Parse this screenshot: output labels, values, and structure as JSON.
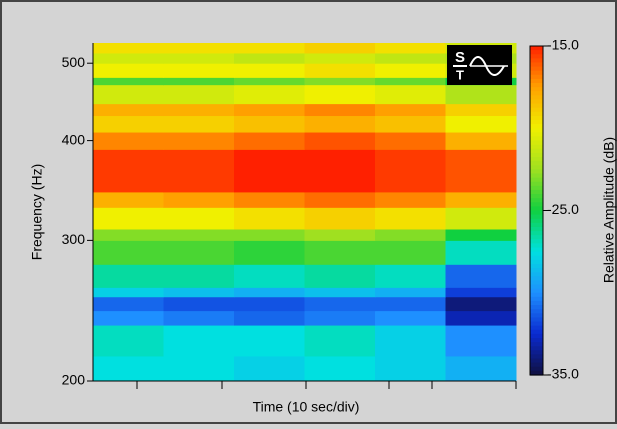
{
  "chart_data": {
    "type": "heatmap",
    "ylabel": "Frequency (Hz)",
    "xlabel": "Time (10 sec/div)",
    "colorbar_label": "Relative Amplitude (dB)",
    "log_y": true,
    "ylim": [
      200,
      530
    ],
    "yticks": [
      200,
      300,
      400,
      500
    ],
    "bins": [
      200,
      215,
      235,
      245,
      255,
      262,
      280,
      300,
      310,
      330,
      345,
      390,
      410,
      430,
      445,
      470,
      480,
      500,
      515,
      530
    ],
    "values": [
      [
        -27.5,
        -27.5,
        -28,
        -27.5,
        -28,
        -29
      ],
      [
        -27,
        -27.5,
        -27.5,
        -27,
        -28,
        -30
      ],
      [
        -30,
        -30.5,
        -31,
        -30.5,
        -30,
        -33
      ],
      [
        -31,
        -31.5,
        -31.5,
        -31,
        -31,
        -34
      ],
      [
        -28,
        -28.5,
        -29,
        -28.5,
        -29,
        -32
      ],
      [
        -26.5,
        -26.5,
        -27,
        -26.5,
        -27,
        -31
      ],
      [
        -24,
        -24,
        -24.5,
        -24,
        -24,
        -27
      ],
      [
        -23,
        -23,
        -23,
        -22.5,
        -23,
        -25
      ],
      [
        -20,
        -20,
        -19.5,
        -19,
        -19.5,
        -21
      ],
      [
        -18,
        -17.5,
        -17,
        -16.5,
        -17,
        -18
      ],
      [
        -15.5,
        -15.5,
        -15,
        -15,
        -15.5,
        -16
      ],
      [
        -17,
        -17,
        -16.5,
        -16,
        -16.5,
        -18
      ],
      [
        -19,
        -19,
        -18.5,
        -18,
        -18.5,
        -20
      ],
      [
        -18,
        -18,
        -17.5,
        -17,
        -17.5,
        -19
      ],
      [
        -21,
        -21,
        -20.5,
        -20,
        -20.5,
        -22
      ],
      [
        -24,
        -24,
        -23.5,
        -23,
        -23.5,
        -25
      ],
      [
        -20,
        -20,
        -20,
        -19.5,
        -20,
        -21
      ],
      [
        -21,
        -21,
        -21.5,
        -21,
        -21.5,
        -22
      ],
      [
        -19.5,
        -19.5,
        -19.5,
        -19,
        -19.5,
        -21
      ]
    ],
    "clim": [
      -35,
      -15
    ],
    "cticks": [
      {
        "value": -15,
        "label": "-15.0"
      },
      {
        "value": -25,
        "label": "-25.0"
      },
      {
        "value": -35,
        "label": "-35.0"
      }
    ],
    "colormap": [
      "#101040",
      "#0a2ad0",
      "#1e90ff",
      "#00e0e0",
      "#10d040",
      "#a0e020",
      "#f0f000",
      "#ffa000",
      "#ff2000"
    ]
  }
}
